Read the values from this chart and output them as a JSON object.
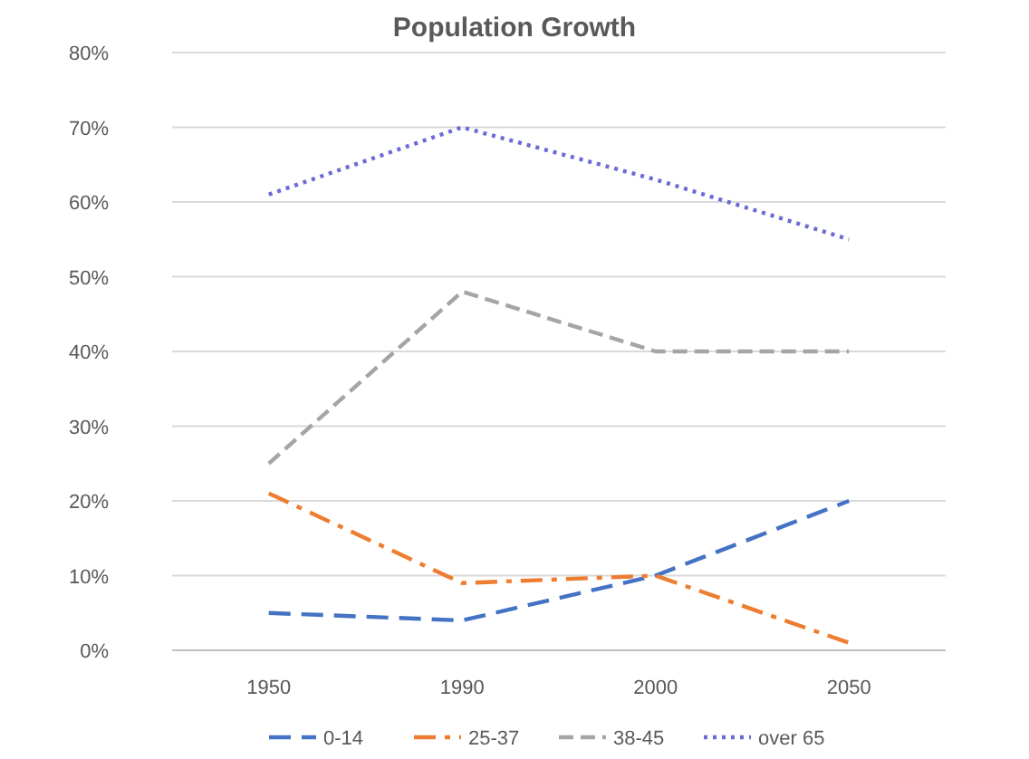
{
  "chart_data": {
    "type": "line",
    "title": "Population Growth",
    "categories": [
      "1950",
      "1990",
      "2000",
      "2050"
    ],
    "series": [
      {
        "name": "0-14",
        "color": "#4472c4",
        "line_style": "longdash",
        "values": [
          5,
          4,
          10,
          20
        ]
      },
      {
        "name": "25-37",
        "color": "#ed7d31",
        "line_style": "dashdot",
        "values": [
          21,
          9,
          10,
          1
        ]
      },
      {
        "name": "38-45",
        "color": "#a5a5a5",
        "line_style": "dashed",
        "values": [
          25,
          48,
          40,
          40
        ]
      },
      {
        "name": "over 65",
        "color": "#6b6bd6",
        "line_style": "dotted",
        "values": [
          61,
          70,
          63,
          55
        ]
      }
    ],
    "ylim": [
      0,
      80
    ],
    "yticks": [
      {
        "value": 0,
        "label": "0%"
      },
      {
        "value": 10,
        "label": "10%"
      },
      {
        "value": 20,
        "label": "20%"
      },
      {
        "value": 30,
        "label": "30%"
      },
      {
        "value": 40,
        "label": "40%"
      },
      {
        "value": 50,
        "label": "50%"
      },
      {
        "value": 60,
        "label": "60%"
      },
      {
        "value": 70,
        "label": "70%"
      },
      {
        "value": 80,
        "label": "80%"
      }
    ],
    "grid": "y",
    "legend": "bottom",
    "marker": "none"
  }
}
